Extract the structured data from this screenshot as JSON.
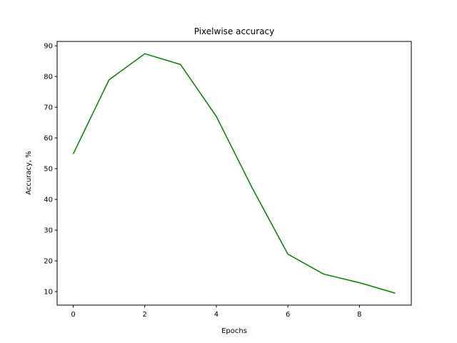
{
  "chart_data": {
    "type": "line",
    "title": "Pixelwise accuracy",
    "xlabel": "Epochs",
    "ylabel": "Accuracy, %",
    "x": [
      0,
      1,
      2,
      3,
      4,
      5,
      6,
      7,
      8,
      9
    ],
    "series": [
      {
        "values": [
          54.8,
          78.9,
          87.4,
          83.9,
          67.0,
          43.8,
          22.2,
          15.7,
          12.9,
          9.5
        ],
        "color": "#008000"
      }
    ],
    "xlim": [
      -0.45,
      9.45
    ],
    "ylim": [
      5.6,
      91.4
    ],
    "xticks": [
      0,
      2,
      4,
      6,
      8
    ],
    "yticks": [
      10,
      20,
      30,
      40,
      50,
      60,
      70,
      80,
      90
    ],
    "grid": false,
    "legend": "none"
  }
}
